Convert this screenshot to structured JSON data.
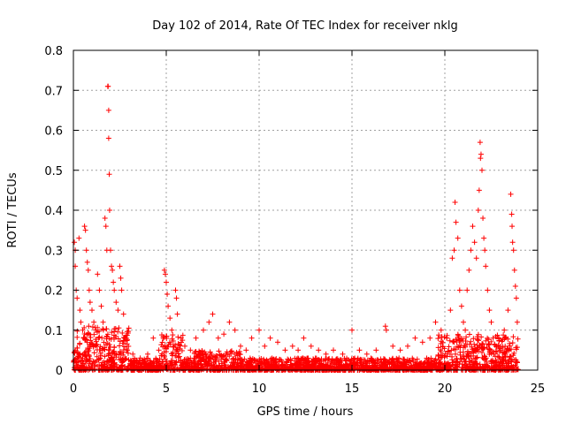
{
  "chart_data": {
    "type": "scatter",
    "title": "Day 102 of 2014, Rate Of TEC Index for receiver nklg",
    "xlabel": "GPS time / hours",
    "ylabel": "ROTI / TECUs",
    "xlim": [
      0,
      25
    ],
    "ylim": [
      0,
      0.8
    ],
    "xticks": [
      "0",
      "5",
      "10",
      "15",
      "20",
      "25"
    ],
    "yticks": [
      "0",
      "0.1",
      "0.2",
      "0.3",
      "0.4",
      "0.5",
      "0.6",
      "0.7",
      "0.8"
    ],
    "grid": true,
    "marker": "+",
    "colors": {
      "series": "#ff0000",
      "grid": "#a0a0a0",
      "axis": "#000000"
    },
    "series": [
      {
        "points": [
          [
            0.05,
            0.32
          ],
          [
            0.1,
            0.3
          ],
          [
            0.1,
            0.26
          ],
          [
            0.15,
            0.2
          ],
          [
            0.2,
            0.18
          ],
          [
            0.3,
            0.33
          ],
          [
            0.35,
            0.15
          ],
          [
            0.4,
            0.12
          ],
          [
            0.5,
            0.1
          ],
          [
            0.55,
            0.08
          ],
          [
            0.6,
            0.36
          ],
          [
            0.65,
            0.35
          ],
          [
            0.7,
            0.3
          ],
          [
            0.75,
            0.27
          ],
          [
            0.8,
            0.25
          ],
          [
            0.85,
            0.2
          ],
          [
            0.9,
            0.17
          ],
          [
            1.0,
            0.15
          ],
          [
            1.1,
            0.12
          ],
          [
            1.2,
            0.1
          ],
          [
            1.3,
            0.24
          ],
          [
            1.4,
            0.2
          ],
          [
            1.5,
            0.16
          ],
          [
            1.6,
            0.12
          ],
          [
            1.7,
            0.38
          ],
          [
            1.75,
            0.36
          ],
          [
            1.8,
            0.3
          ],
          [
            1.85,
            0.71
          ],
          [
            1.87,
            0.71
          ],
          [
            1.9,
            0.65
          ],
          [
            1.9,
            0.58
          ],
          [
            1.93,
            0.49
          ],
          [
            1.95,
            0.4
          ],
          [
            2.0,
            0.3
          ],
          [
            2.05,
            0.26
          ],
          [
            2.1,
            0.25
          ],
          [
            2.15,
            0.22
          ],
          [
            2.2,
            0.2
          ],
          [
            2.3,
            0.17
          ],
          [
            2.4,
            0.15
          ],
          [
            2.5,
            0.26
          ],
          [
            2.55,
            0.23
          ],
          [
            2.6,
            0.2
          ],
          [
            2.7,
            0.14
          ],
          [
            2.8,
            0.08
          ],
          [
            2.9,
            0.05
          ],
          [
            3.2,
            0.04
          ],
          [
            3.6,
            0.03
          ],
          [
            4.0,
            0.04
          ],
          [
            4.3,
            0.08
          ],
          [
            4.6,
            0.05
          ],
          [
            4.9,
            0.25
          ],
          [
            4.95,
            0.24
          ],
          [
            5.0,
            0.22
          ],
          [
            5.05,
            0.19
          ],
          [
            5.1,
            0.16
          ],
          [
            5.2,
            0.13
          ],
          [
            5.3,
            0.1
          ],
          [
            5.5,
            0.2
          ],
          [
            5.55,
            0.18
          ],
          [
            5.6,
            0.14
          ],
          [
            5.8,
            0.08
          ],
          [
            6.0,
            0.06
          ],
          [
            6.3,
            0.05
          ],
          [
            6.6,
            0.08
          ],
          [
            7.0,
            0.1
          ],
          [
            7.3,
            0.12
          ],
          [
            7.5,
            0.14
          ],
          [
            7.8,
            0.08
          ],
          [
            8.1,
            0.09
          ],
          [
            8.4,
            0.12
          ],
          [
            8.7,
            0.1
          ],
          [
            9.0,
            0.06
          ],
          [
            9.3,
            0.05
          ],
          [
            9.6,
            0.08
          ],
          [
            10.0,
            0.1
          ],
          [
            10.3,
            0.06
          ],
          [
            10.6,
            0.08
          ],
          [
            11.0,
            0.07
          ],
          [
            11.4,
            0.05
          ],
          [
            11.8,
            0.06
          ],
          [
            12.1,
            0.05
          ],
          [
            12.4,
            0.08
          ],
          [
            12.8,
            0.06
          ],
          [
            13.2,
            0.05
          ],
          [
            13.6,
            0.04
          ],
          [
            14.0,
            0.05
          ],
          [
            14.5,
            0.04
          ],
          [
            15.0,
            0.1
          ],
          [
            15.4,
            0.05
          ],
          [
            15.8,
            0.04
          ],
          [
            16.3,
            0.05
          ],
          [
            16.8,
            0.11
          ],
          [
            16.85,
            0.1
          ],
          [
            17.2,
            0.06
          ],
          [
            17.6,
            0.05
          ],
          [
            18.0,
            0.06
          ],
          [
            18.4,
            0.08
          ],
          [
            18.8,
            0.07
          ],
          [
            19.2,
            0.08
          ],
          [
            19.5,
            0.12
          ],
          [
            19.8,
            0.1
          ],
          [
            20.1,
            0.08
          ],
          [
            20.3,
            0.15
          ],
          [
            20.4,
            0.28
          ],
          [
            20.5,
            0.3
          ],
          [
            20.55,
            0.42
          ],
          [
            20.6,
            0.37
          ],
          [
            20.7,
            0.33
          ],
          [
            20.8,
            0.2
          ],
          [
            20.9,
            0.16
          ],
          [
            21.0,
            0.12
          ],
          [
            21.1,
            0.1
          ],
          [
            21.2,
            0.2
          ],
          [
            21.3,
            0.25
          ],
          [
            21.4,
            0.3
          ],
          [
            21.5,
            0.36
          ],
          [
            21.6,
            0.32
          ],
          [
            21.7,
            0.28
          ],
          [
            21.8,
            0.4
          ],
          [
            21.85,
            0.45
          ],
          [
            21.9,
            0.57
          ],
          [
            21.92,
            0.53
          ],
          [
            21.95,
            0.54
          ],
          [
            22.0,
            0.5
          ],
          [
            22.05,
            0.38
          ],
          [
            22.1,
            0.33
          ],
          [
            22.15,
            0.3
          ],
          [
            22.2,
            0.26
          ],
          [
            22.3,
            0.2
          ],
          [
            22.4,
            0.15
          ],
          [
            22.5,
            0.12
          ],
          [
            22.6,
            0.08
          ],
          [
            22.8,
            0.06
          ],
          [
            23.0,
            0.05
          ],
          [
            23.2,
            0.1
          ],
          [
            23.4,
            0.15
          ],
          [
            23.55,
            0.44
          ],
          [
            23.6,
            0.39
          ],
          [
            23.62,
            0.36
          ],
          [
            23.65,
            0.32
          ],
          [
            23.7,
            0.3
          ],
          [
            23.75,
            0.25
          ],
          [
            23.8,
            0.21
          ],
          [
            23.85,
            0.18
          ],
          [
            23.9,
            0.12
          ]
        ]
      }
    ]
  }
}
